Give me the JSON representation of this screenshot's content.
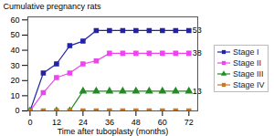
{
  "chart_data": {
    "type": "line",
    "xlabel": "Time after tuboplasty (months)",
    "ylabel": "Cumulative pregnancy rats",
    "xlim": [
      -1,
      76
    ],
    "ylim": [
      0,
      62
    ],
    "xticks": [
      0,
      12,
      24,
      36,
      48,
      60,
      72
    ],
    "yticks": [
      0,
      10,
      20,
      30,
      40,
      50,
      60
    ],
    "grid": false,
    "legend": "right",
    "series": [
      {
        "name": "Stage I",
        "color": "#2222aa",
        "marker": "square",
        "x": [
          0,
          6,
          12,
          18,
          24,
          30,
          36,
          42,
          48,
          54,
          60,
          66,
          72
        ],
        "values": [
          0,
          25,
          31,
          43,
          46,
          53,
          53,
          53,
          53,
          53,
          53,
          53,
          53
        ]
      },
      {
        "name": "Stage II",
        "color": "#ee44ee",
        "marker": "square",
        "x": [
          0,
          6,
          12,
          18,
          24,
          30,
          36,
          42,
          48,
          54,
          60,
          66,
          72
        ],
        "values": [
          0,
          12,
          22,
          25,
          31,
          33,
          38,
          38,
          38,
          38,
          38,
          38,
          38
        ]
      },
      {
        "name": "Stage III",
        "color": "#228B22",
        "marker": "triangle",
        "x": [
          0,
          12,
          18,
          24,
          30,
          36,
          42,
          48,
          54,
          60,
          66,
          72
        ],
        "values": [
          0,
          0,
          0,
          13,
          13,
          13,
          13,
          13,
          13,
          13,
          13,
          13
        ]
      },
      {
        "name": "Stage IV",
        "color": "#cc7722",
        "marker": "square",
        "x": [
          0,
          6,
          12,
          18,
          24,
          30,
          36,
          42,
          48,
          54,
          60,
          66,
          72
        ],
        "values": [
          0,
          0,
          0,
          0,
          0,
          0,
          0,
          0,
          0,
          0,
          0,
          0,
          0
        ]
      }
    ],
    "annotations": [
      {
        "text": "53",
        "x": 72,
        "y": 53
      },
      {
        "text": "38",
        "x": 72,
        "y": 38
      },
      {
        "text": "13",
        "x": 72,
        "y": 13
      }
    ]
  }
}
